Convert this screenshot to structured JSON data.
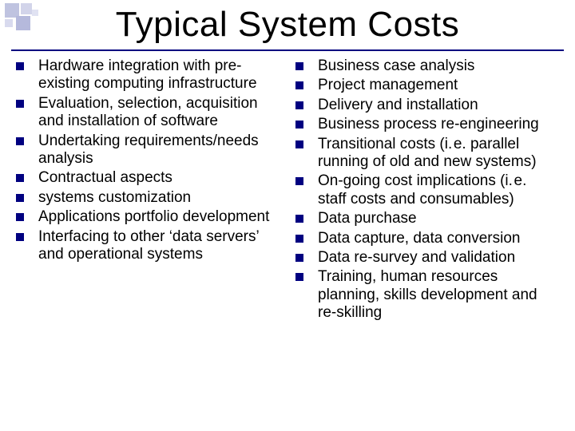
{
  "title": "Typical System Costs",
  "colors": {
    "bullet": "#000080",
    "rule": "#000080",
    "background": "#ffffff",
    "text": "#000000"
  },
  "typography": {
    "title_fontsize": 44,
    "body_fontsize": 19,
    "font_family": "Arial"
  },
  "left_column": [
    "Hardware integration with pre-existing computing infrastructure",
    "Evaluation, selection, acquisition and installation of software",
    "Undertaking requirements/needs analysis",
    "Contractual aspects",
    "systems customization",
    "Applications portfolio development",
    "Interfacing to other ‘data servers’ and operational systems"
  ],
  "right_column": [
    "Business case analysis",
    "Project management",
    "Delivery and installation",
    "Business process re-engineering",
    "Transitional costs (i. e. parallel running of old and new systems)",
    "On-going cost implications (i. e. staff costs and consumables)",
    "Data purchase",
    "Data capture, data conversion",
    "Data re-survey and validation",
    "Training, human resources planning, skills development and re-skilling"
  ]
}
